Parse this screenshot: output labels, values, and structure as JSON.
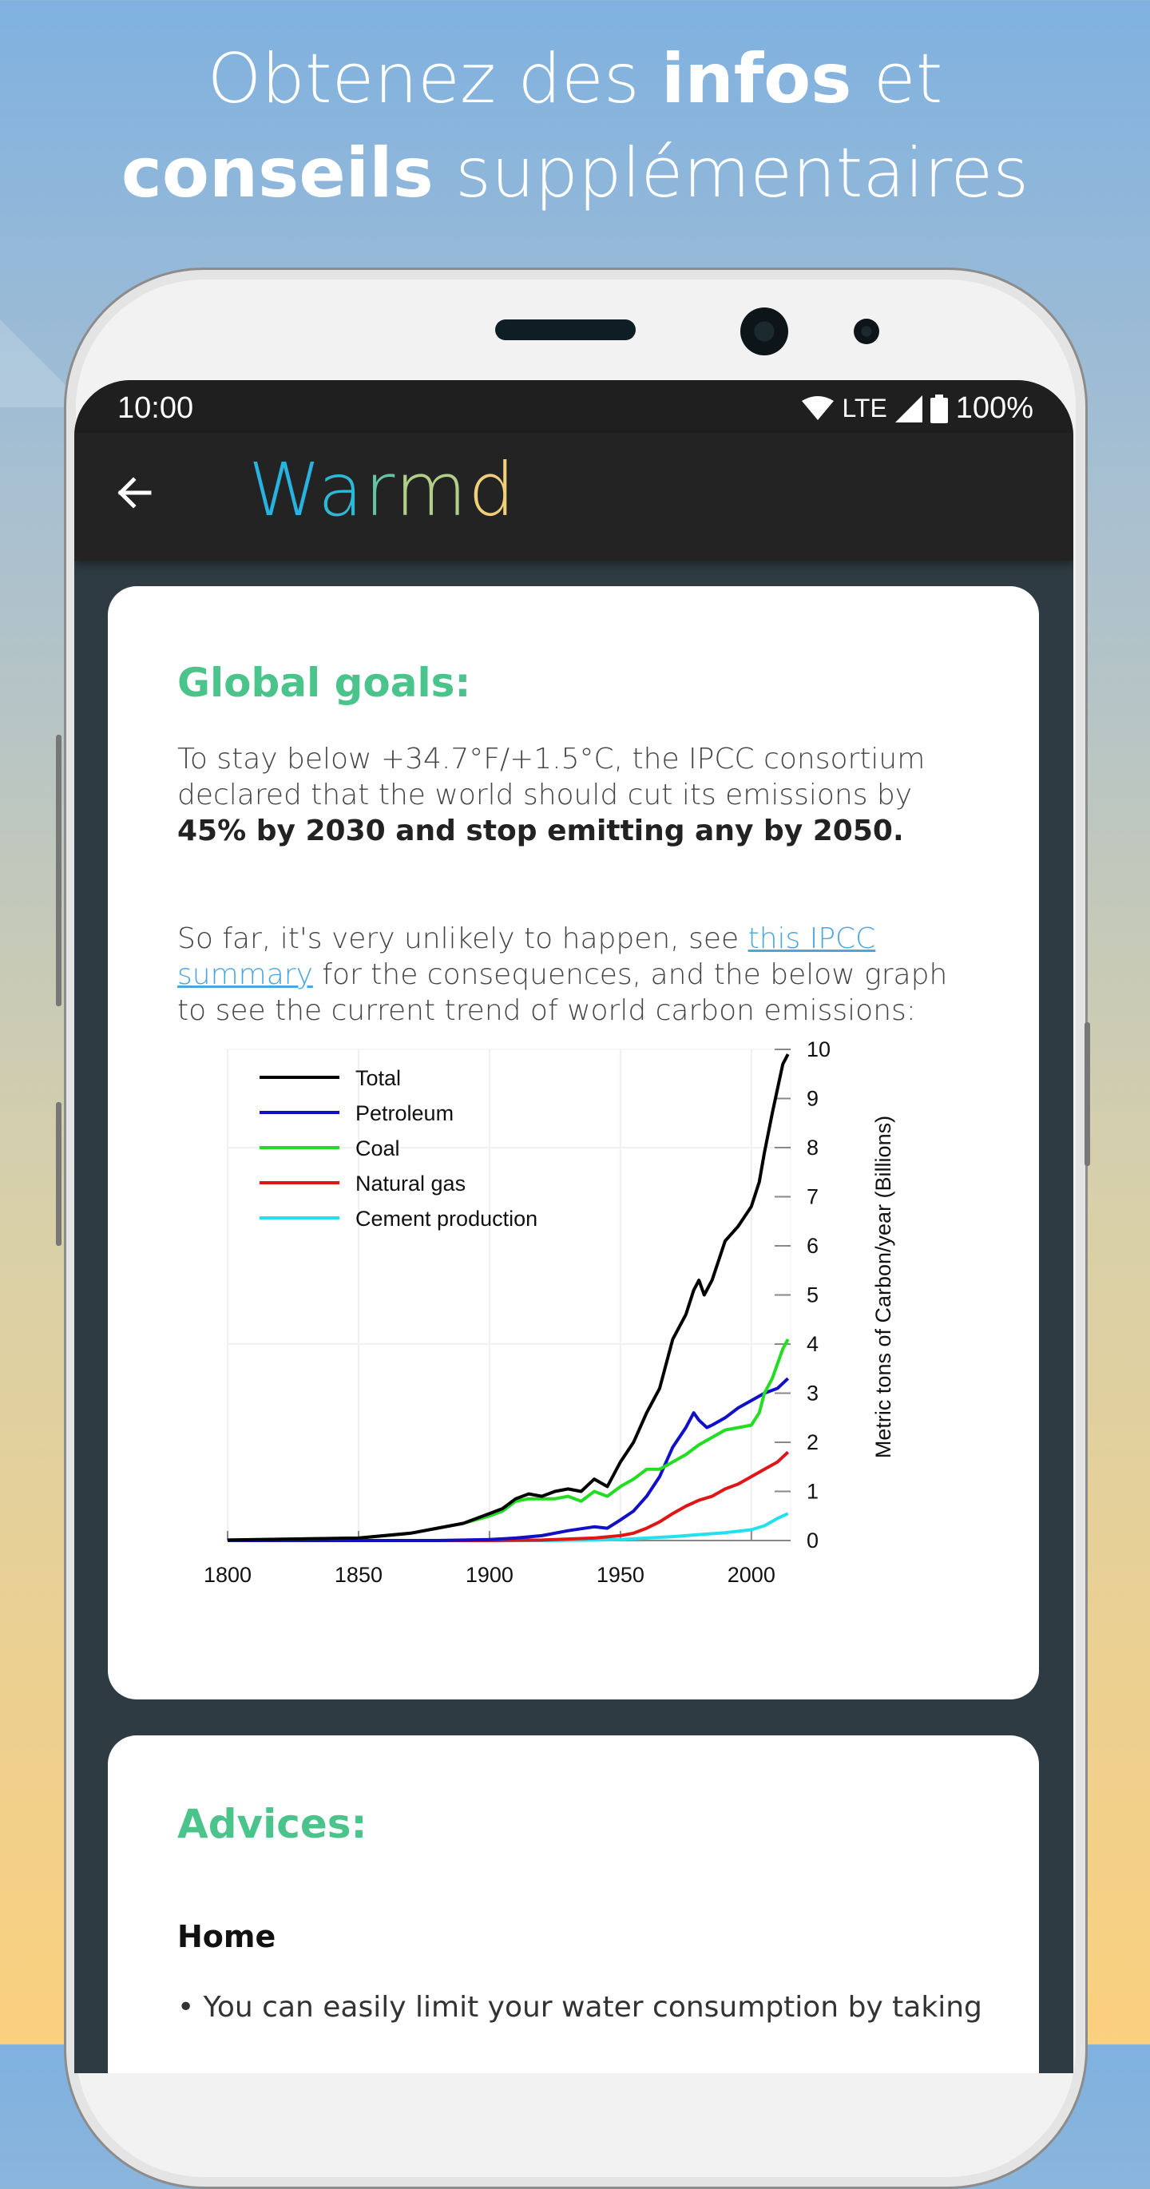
{
  "promo": {
    "line1_pre": "Obtenez des ",
    "line1_bold": "infos",
    "line1_post": " et",
    "line2_bold": "conseils",
    "line2_post": " supplémentaires"
  },
  "status_bar": {
    "time": "10:00",
    "network": "LTE",
    "battery": "100%"
  },
  "app_bar": {
    "title_letters": [
      "W",
      "a",
      "r",
      "m",
      "d"
    ],
    "title_colors": [
      "#27b2e0",
      "#2cb9d6",
      "#64c3a1",
      "#b2cf87",
      "#f0cf7a"
    ]
  },
  "goals_card": {
    "heading": "Global goals:",
    "para1_pre": "To stay below +34.7°F/+1.5°C, the IPCC consortium declared that the world should cut its emissions by ",
    "para1_bold": "45% by 2030 and stop emitting any by 2050.",
    "para2_pre": "So far, it's very unlikely to happen, see ",
    "para2_link": "this IPCC summary",
    "para2_post": " for the consequences, and the below graph to see the current trend of world carbon emissions:"
  },
  "chart_data": {
    "type": "line",
    "title": "",
    "xlabel": "",
    "ylabel": "Metric tons of Carbon/year (Billions)",
    "xlim": [
      1800,
      2015
    ],
    "ylim": [
      0,
      10
    ],
    "x_ticks": [
      1800,
      1850,
      1900,
      1950,
      2000
    ],
    "y_ticks": [
      0,
      1,
      2,
      3,
      4,
      5,
      6,
      7,
      8,
      9,
      10
    ],
    "legend_position": "top-left",
    "grid": true,
    "series": [
      {
        "name": "Total",
        "color": "#000000",
        "x": [
          1800,
          1850,
          1870,
          1880,
          1890,
          1900,
          1905,
          1910,
          1915,
          1920,
          1925,
          1930,
          1935,
          1940,
          1945,
          1950,
          1955,
          1960,
          1965,
          1970,
          1975,
          1978,
          1980,
          1982,
          1985,
          1990,
          1995,
          2000,
          2003,
          2005,
          2008,
          2010,
          2012,
          2014
        ],
        "y": [
          0.01,
          0.05,
          0.15,
          0.25,
          0.35,
          0.55,
          0.65,
          0.85,
          0.95,
          0.9,
          1.0,
          1.05,
          1.0,
          1.25,
          1.1,
          1.6,
          2.0,
          2.6,
          3.1,
          4.1,
          4.6,
          5.1,
          5.3,
          5.0,
          5.3,
          6.1,
          6.4,
          6.8,
          7.3,
          7.9,
          8.7,
          9.2,
          9.7,
          9.9
        ]
      },
      {
        "name": "Petroleum",
        "color": "#1010c8",
        "x": [
          1800,
          1880,
          1900,
          1910,
          1920,
          1930,
          1940,
          1945,
          1950,
          1955,
          1960,
          1965,
          1970,
          1975,
          1978,
          1980,
          1983,
          1985,
          1990,
          1995,
          2000,
          2005,
          2010,
          2014
        ],
        "y": [
          0,
          0,
          0.02,
          0.05,
          0.1,
          0.2,
          0.28,
          0.25,
          0.42,
          0.6,
          0.9,
          1.3,
          1.9,
          2.3,
          2.6,
          2.45,
          2.3,
          2.35,
          2.5,
          2.7,
          2.85,
          3.0,
          3.1,
          3.3
        ]
      },
      {
        "name": "Coal",
        "color": "#22dd22",
        "x": [
          1800,
          1850,
          1870,
          1880,
          1890,
          1900,
          1905,
          1910,
          1915,
          1920,
          1925,
          1930,
          1935,
          1940,
          1945,
          1950,
          1955,
          1960,
          1965,
          1970,
          1975,
          1980,
          1985,
          1990,
          1995,
          2000,
          2003,
          2005,
          2008,
          2010,
          2012,
          2014
        ],
        "y": [
          0.01,
          0.05,
          0.15,
          0.25,
          0.35,
          0.5,
          0.6,
          0.8,
          0.85,
          0.85,
          0.85,
          0.9,
          0.8,
          1.0,
          0.9,
          1.1,
          1.25,
          1.45,
          1.45,
          1.6,
          1.75,
          1.95,
          2.1,
          2.25,
          2.3,
          2.35,
          2.6,
          3.0,
          3.3,
          3.6,
          3.9,
          4.1
        ]
      },
      {
        "name": "Natural gas",
        "color": "#e01515",
        "x": [
          1800,
          1900,
          1920,
          1940,
          1950,
          1955,
          1960,
          1965,
          1970,
          1975,
          1980,
          1985,
          1990,
          1995,
          2000,
          2005,
          2010,
          2014
        ],
        "y": [
          0,
          0,
          0.01,
          0.05,
          0.1,
          0.15,
          0.25,
          0.38,
          0.55,
          0.7,
          0.82,
          0.9,
          1.05,
          1.15,
          1.3,
          1.45,
          1.6,
          1.8
        ]
      },
      {
        "name": "Cement production",
        "color": "#22e0ee",
        "x": [
          1800,
          1920,
          1940,
          1950,
          1960,
          1970,
          1980,
          1990,
          2000,
          2005,
          2010,
          2014
        ],
        "y": [
          0,
          0,
          0.01,
          0.02,
          0.05,
          0.08,
          0.12,
          0.16,
          0.22,
          0.3,
          0.45,
          0.55
        ]
      }
    ]
  },
  "advices_card": {
    "heading": "Advices:",
    "subheading": "Home",
    "bullet1": "• You can easily limit your water consumption by taking"
  }
}
